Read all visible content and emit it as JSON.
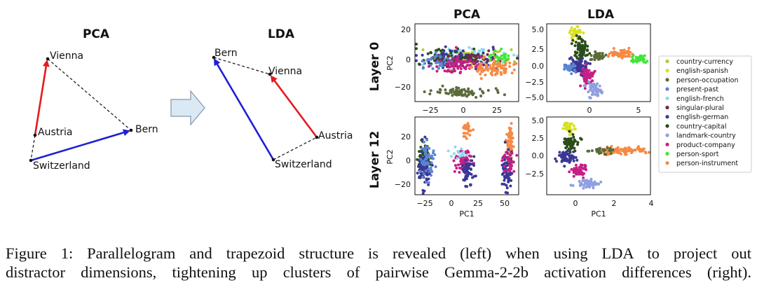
{
  "left": {
    "pca": {
      "title": "PCA",
      "points": [
        {
          "label": "Vienna"
        },
        {
          "label": "Austria"
        },
        {
          "label": "Bern"
        },
        {
          "label": "Switzerland"
        }
      ]
    },
    "lda": {
      "title": "LDA",
      "points": [
        {
          "label": "Bern"
        },
        {
          "label": "Vienna"
        },
        {
          "label": "Austria"
        },
        {
          "label": "Switzerland"
        }
      ]
    }
  },
  "right": {
    "column_titles": [
      "PCA",
      "LDA"
    ],
    "row_titles": [
      "Layer 0",
      "Layer 12"
    ],
    "panels": [
      {
        "name": "pca-layer0",
        "ylabel": "PC2",
        "xlabel": "",
        "xticks": [
          "−25",
          "0",
          "25"
        ],
        "yticks": [
          "20",
          "0",
          "−20"
        ]
      },
      {
        "name": "lda-layer0",
        "ylabel": "",
        "xlabel": "",
        "xticks": [
          "0",
          "5"
        ],
        "yticks": [
          "5.0",
          "2.5",
          "0.0",
          "−2.5",
          "−5.0"
        ]
      },
      {
        "name": "pca-layer12",
        "ylabel": "PC2",
        "xlabel": "PC1",
        "xticks": [
          "−25",
          "0",
          "25",
          "50"
        ],
        "yticks": [
          "20",
          "0",
          "−20"
        ]
      },
      {
        "name": "lda-layer12",
        "ylabel": "",
        "xlabel": "PC1",
        "xticks": [
          "0",
          "2",
          "4"
        ],
        "yticks": [
          "5.0",
          "2.5",
          "0.0",
          "−2.5"
        ]
      }
    ],
    "legend": [
      {
        "label": "country-currency",
        "color": "#b5c73a"
      },
      {
        "label": "english-spanish",
        "color": "#d7e21e"
      },
      {
        "label": "person-occupation",
        "color": "#5b6a3b"
      },
      {
        "label": "present-past",
        "color": "#5b86d6"
      },
      {
        "label": "english-french",
        "color": "#8fd8ef"
      },
      {
        "label": "singular-plural",
        "color": "#6d2a4a"
      },
      {
        "label": "english-german",
        "color": "#3b3797"
      },
      {
        "label": "country-capital",
        "color": "#2b4d1a"
      },
      {
        "label": "landmark-country",
        "color": "#8fa0e0"
      },
      {
        "label": "product-company",
        "color": "#c61f86"
      },
      {
        "label": "person-sport",
        "color": "#41e53a"
      },
      {
        "label": "person-instrument",
        "color": "#f58a45"
      }
    ]
  },
  "caption": {
    "line1": "Figure 1: Parallelogram and trapezoid structure is revealed (left) when using LDA to project out",
    "line2": "distractor dimensions, tightening up clusters of pairwise Gemma-2-2b activation differences (right)."
  }
}
